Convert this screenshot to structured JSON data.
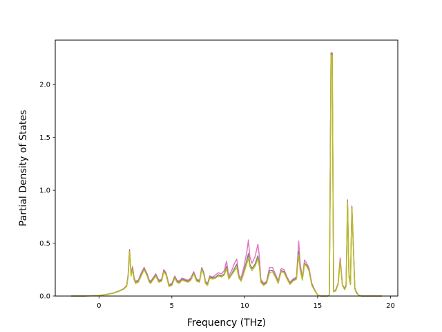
{
  "chart_data": {
    "type": "line",
    "title": "",
    "xlabel": "Frequency (THz)",
    "ylabel": "Partial Density of States",
    "xlim": [
      -3.0,
      20.5
    ],
    "ylim": [
      0.0,
      2.42
    ],
    "xticks": [
      0,
      5,
      10,
      15,
      20
    ],
    "xtick_labels": [
      "0",
      "5",
      "10",
      "15",
      "20"
    ],
    "yticks": [
      0.0,
      0.5,
      1.0,
      1.5,
      2.0
    ],
    "ytick_labels": [
      "0.0",
      "0.5",
      "1.0",
      "1.5",
      "2.0"
    ],
    "grid": false,
    "legend": "none",
    "series": [
      {
        "color": "#e377c2",
        "x": [
          -1.9,
          -1.0,
          0.0,
          0.5,
          1.0,
          1.4,
          1.7,
          1.9,
          2.0,
          2.1,
          2.2,
          2.3,
          2.4,
          2.5,
          2.7,
          2.9,
          3.1,
          3.3,
          3.45,
          3.55,
          3.7,
          3.9,
          4.1,
          4.3,
          4.45,
          4.6,
          4.8,
          5.0,
          5.2,
          5.35,
          5.5,
          5.7,
          5.9,
          6.1,
          6.3,
          6.5,
          6.7,
          6.9,
          7.05,
          7.2,
          7.3,
          7.45,
          7.6,
          7.8,
          8.0,
          8.2,
          8.4,
          8.6,
          8.75,
          8.9,
          9.1,
          9.3,
          9.45,
          9.6,
          9.75,
          9.95,
          10.15,
          10.25,
          10.35,
          10.5,
          10.7,
          10.9,
          11.0,
          11.1,
          11.3,
          11.5,
          11.7,
          11.9,
          12.1,
          12.3,
          12.5,
          12.7,
          12.9,
          13.1,
          13.3,
          13.55,
          13.7,
          13.8,
          13.95,
          14.1,
          14.25,
          14.4,
          14.6,
          14.8,
          15.0,
          15.2,
          15.4,
          15.55,
          15.7,
          15.8,
          15.85,
          15.92,
          16.0,
          16.1,
          16.25,
          16.4,
          16.55,
          16.7,
          16.85,
          16.95,
          17.0,
          17.05,
          17.15,
          17.25,
          17.35,
          17.45,
          17.55,
          17.65,
          17.8,
          18.0,
          18.5,
          19.0,
          19.4
        ],
        "values": [
          0,
          0,
          0.005,
          0.015,
          0.03,
          0.05,
          0.07,
          0.1,
          0.2,
          0.44,
          0.21,
          0.28,
          0.18,
          0.14,
          0.15,
          0.22,
          0.27,
          0.21,
          0.15,
          0.14,
          0.17,
          0.21,
          0.15,
          0.16,
          0.25,
          0.22,
          0.11,
          0.12,
          0.19,
          0.15,
          0.14,
          0.17,
          0.16,
          0.15,
          0.17,
          0.23,
          0.16,
          0.15,
          0.27,
          0.22,
          0.14,
          0.12,
          0.19,
          0.18,
          0.2,
          0.22,
          0.21,
          0.24,
          0.33,
          0.19,
          0.24,
          0.31,
          0.35,
          0.2,
          0.17,
          0.28,
          0.42,
          0.53,
          0.37,
          0.31,
          0.37,
          0.49,
          0.38,
          0.16,
          0.12,
          0.14,
          0.27,
          0.27,
          0.21,
          0.14,
          0.26,
          0.25,
          0.18,
          0.13,
          0.16,
          0.18,
          0.52,
          0.31,
          0.17,
          0.34,
          0.31,
          0.27,
          0.12,
          0.06,
          0.01,
          0.0,
          0.0,
          0.0,
          0.0,
          0.01,
          0.9,
          2.3,
          2.3,
          0.04,
          0.06,
          0.12,
          0.36,
          0.11,
          0.07,
          0.1,
          0.45,
          0.91,
          0.2,
          0.12,
          0.85,
          0.5,
          0.08,
          0.04,
          0.01,
          0.0,
          0.0,
          0.0,
          0.0
        ]
      },
      {
        "color": "#7f7f7f",
        "x": [
          -1.9,
          -1.0,
          0.0,
          0.5,
          1.0,
          1.4,
          1.7,
          1.9,
          2.0,
          2.1,
          2.2,
          2.3,
          2.4,
          2.5,
          2.7,
          2.9,
          3.1,
          3.3,
          3.45,
          3.55,
          3.7,
          3.9,
          4.1,
          4.3,
          4.45,
          4.6,
          4.8,
          5.0,
          5.2,
          5.35,
          5.5,
          5.7,
          5.9,
          6.1,
          6.3,
          6.5,
          6.7,
          6.9,
          7.05,
          7.2,
          7.3,
          7.45,
          7.6,
          7.8,
          8.0,
          8.2,
          8.4,
          8.6,
          8.75,
          8.9,
          9.1,
          9.3,
          9.45,
          9.6,
          9.75,
          9.95,
          10.15,
          10.25,
          10.35,
          10.5,
          10.7,
          10.9,
          11.0,
          11.1,
          11.3,
          11.5,
          11.7,
          11.9,
          12.1,
          12.3,
          12.5,
          12.7,
          12.9,
          13.1,
          13.3,
          13.55,
          13.7,
          13.8,
          13.95,
          14.1,
          14.25,
          14.4,
          14.6,
          14.8,
          15.0,
          15.2,
          15.4,
          15.55,
          15.7,
          15.8,
          15.85,
          15.92,
          16.0,
          16.1,
          16.25,
          16.4,
          16.55,
          16.7,
          16.85,
          16.95,
          17.0,
          17.05,
          17.15,
          17.25,
          17.35,
          17.45,
          17.55,
          17.65,
          17.8,
          18.0,
          18.5,
          19.0,
          19.4
        ],
        "values": [
          0,
          0,
          0.005,
          0.014,
          0.028,
          0.048,
          0.068,
          0.095,
          0.19,
          0.43,
          0.2,
          0.26,
          0.17,
          0.13,
          0.14,
          0.2,
          0.26,
          0.2,
          0.14,
          0.13,
          0.16,
          0.2,
          0.14,
          0.15,
          0.24,
          0.21,
          0.1,
          0.11,
          0.18,
          0.14,
          0.13,
          0.16,
          0.15,
          0.14,
          0.16,
          0.22,
          0.15,
          0.14,
          0.26,
          0.21,
          0.13,
          0.11,
          0.18,
          0.17,
          0.18,
          0.2,
          0.19,
          0.21,
          0.28,
          0.17,
          0.21,
          0.26,
          0.3,
          0.18,
          0.15,
          0.24,
          0.34,
          0.4,
          0.3,
          0.26,
          0.3,
          0.38,
          0.3,
          0.14,
          0.11,
          0.13,
          0.24,
          0.24,
          0.19,
          0.13,
          0.24,
          0.23,
          0.17,
          0.12,
          0.15,
          0.17,
          0.42,
          0.27,
          0.16,
          0.31,
          0.29,
          0.25,
          0.11,
          0.05,
          0.01,
          0.0,
          0.0,
          0.0,
          0.0,
          0.01,
          0.88,
          2.29,
          2.29,
          0.04,
          0.06,
          0.11,
          0.34,
          0.1,
          0.07,
          0.1,
          0.43,
          0.9,
          0.19,
          0.11,
          0.84,
          0.48,
          0.08,
          0.04,
          0.01,
          0.0,
          0.0,
          0.0,
          0.0
        ]
      },
      {
        "color": "#bcbd22",
        "x": [
          -1.9,
          -1.0,
          0.0,
          0.5,
          1.0,
          1.4,
          1.7,
          1.9,
          2.0,
          2.1,
          2.2,
          2.3,
          2.4,
          2.5,
          2.7,
          2.9,
          3.1,
          3.3,
          3.45,
          3.55,
          3.7,
          3.9,
          4.1,
          4.3,
          4.45,
          4.6,
          4.8,
          5.0,
          5.2,
          5.35,
          5.5,
          5.7,
          5.9,
          6.1,
          6.3,
          6.5,
          6.7,
          6.9,
          7.05,
          7.2,
          7.3,
          7.45,
          7.6,
          7.8,
          8.0,
          8.2,
          8.4,
          8.6,
          8.75,
          8.9,
          9.1,
          9.3,
          9.45,
          9.6,
          9.75,
          9.95,
          10.15,
          10.25,
          10.35,
          10.5,
          10.7,
          10.9,
          11.0,
          11.1,
          11.3,
          11.5,
          11.7,
          11.9,
          12.1,
          12.3,
          12.5,
          12.7,
          12.9,
          13.1,
          13.3,
          13.55,
          13.7,
          13.8,
          13.95,
          14.1,
          14.25,
          14.4,
          14.6,
          14.8,
          15.0,
          15.2,
          15.4,
          15.55,
          15.7,
          15.8,
          15.85,
          15.92,
          16.0,
          16.1,
          16.25,
          16.4,
          16.55,
          16.7,
          16.85,
          16.95,
          17.0,
          17.05,
          17.15,
          17.25,
          17.35,
          17.45,
          17.55,
          17.65,
          17.8,
          18.0,
          18.5,
          19.0,
          19.4
        ],
        "values": [
          0,
          0,
          0.005,
          0.013,
          0.027,
          0.046,
          0.066,
          0.09,
          0.18,
          0.42,
          0.19,
          0.25,
          0.16,
          0.12,
          0.13,
          0.19,
          0.25,
          0.19,
          0.13,
          0.12,
          0.15,
          0.19,
          0.13,
          0.14,
          0.23,
          0.2,
          0.09,
          0.1,
          0.17,
          0.13,
          0.12,
          0.15,
          0.14,
          0.13,
          0.15,
          0.21,
          0.14,
          0.13,
          0.25,
          0.2,
          0.12,
          0.1,
          0.17,
          0.16,
          0.17,
          0.19,
          0.18,
          0.2,
          0.26,
          0.16,
          0.2,
          0.24,
          0.27,
          0.17,
          0.14,
          0.22,
          0.31,
          0.36,
          0.28,
          0.24,
          0.28,
          0.35,
          0.28,
          0.13,
          0.1,
          0.12,
          0.22,
          0.23,
          0.18,
          0.12,
          0.23,
          0.22,
          0.16,
          0.11,
          0.14,
          0.16,
          0.39,
          0.25,
          0.15,
          0.3,
          0.28,
          0.24,
          0.1,
          0.05,
          0.01,
          0.0,
          0.0,
          0.0,
          0.0,
          0.01,
          0.87,
          2.28,
          2.28,
          0.04,
          0.05,
          0.11,
          0.33,
          0.1,
          0.06,
          0.09,
          0.42,
          0.89,
          0.18,
          0.11,
          0.83,
          0.47,
          0.07,
          0.03,
          0.01,
          0.0,
          0.0,
          0.0,
          0.0
        ]
      }
    ]
  }
}
